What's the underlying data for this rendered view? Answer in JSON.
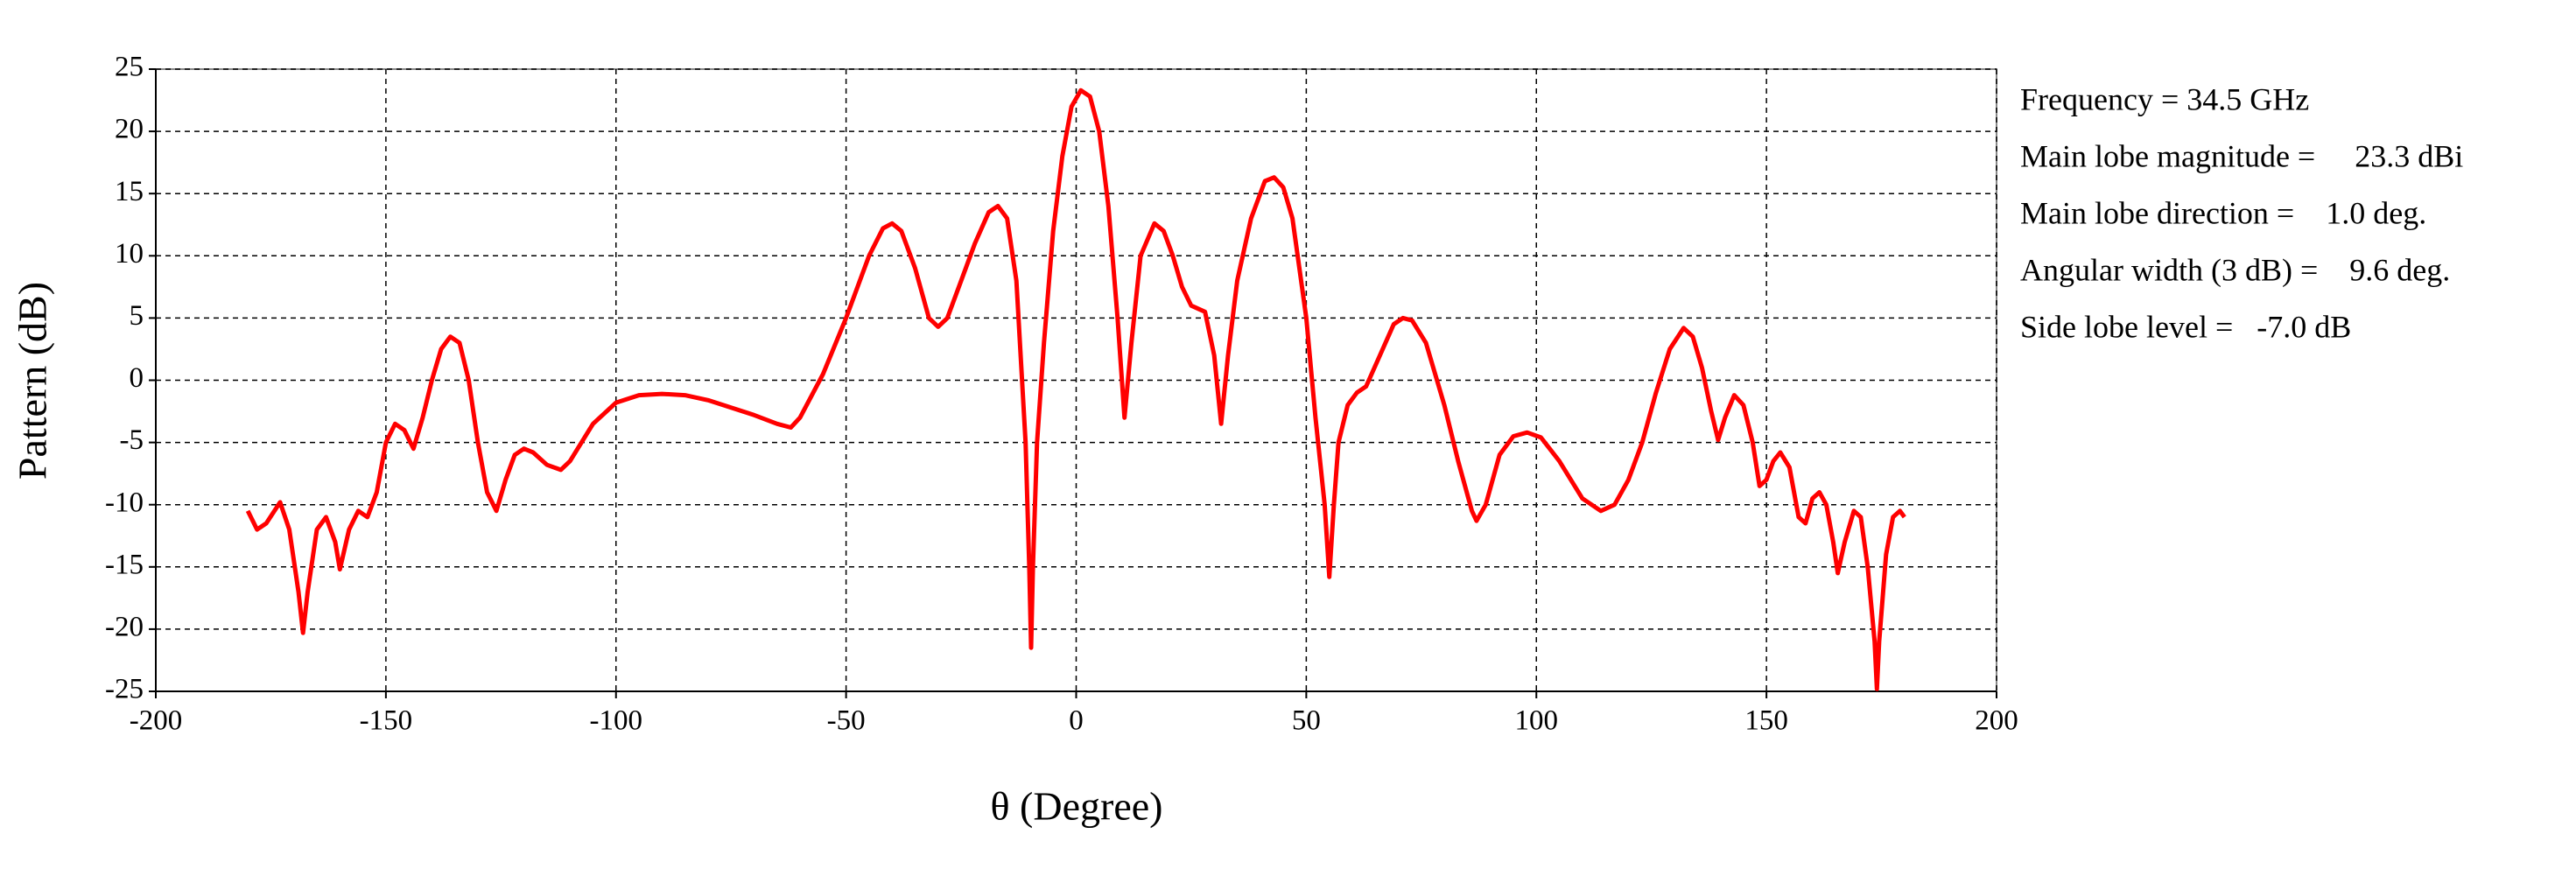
{
  "chart_data": {
    "type": "line",
    "xlabel": "θ (Degree)",
    "ylabel": "Pattern (dB)",
    "xlim": [
      -200,
      200
    ],
    "ylim": [
      -25,
      25
    ],
    "xticks": [
      -200,
      -150,
      -100,
      -50,
      0,
      50,
      100,
      150,
      200
    ],
    "yticks": [
      -25,
      -20,
      -15,
      -10,
      -5,
      0,
      5,
      10,
      15,
      20,
      25
    ],
    "grid": true,
    "annotations": [
      "Frequency = 34.5 GHz",
      "Main lobe magnitude =     23.3 dBi",
      "Main lobe direction =    1.0 deg.",
      "Angular width (3 dB) =    9.6 deg.",
      "Side lobe level =   -7.0 dB"
    ],
    "x": [
      -180,
      -178,
      -176,
      -173,
      -171,
      -169,
      -168,
      -167,
      -165,
      -163,
      -161,
      -160,
      -158,
      -156,
      -154,
      -152,
      -150,
      -148,
      -146,
      -144,
      -142,
      -140,
      -138,
      -136,
      -134,
      -132,
      -130,
      -128,
      -126,
      -124,
      -122,
      -120,
      -118,
      -115,
      -112,
      -110,
      -105,
      -100,
      -95,
      -90,
      -85,
      -80,
      -75,
      -70,
      -65,
      -62,
      -60,
      -55,
      -50,
      -45,
      -42,
      -40,
      -38,
      -35,
      -32,
      -30,
      -28,
      -25,
      -22,
      -19,
      -17,
      -15,
      -13,
      -11,
      -10.2,
      -9.8,
      -9.4,
      -8.5,
      -7,
      -5,
      -3,
      -1,
      1,
      3,
      5,
      7,
      9,
      10.5,
      12,
      14,
      17,
      19,
      21,
      23,
      25,
      28,
      30,
      31.5,
      33,
      35,
      38,
      41,
      43,
      45,
      47,
      50,
      52,
      54,
      55,
      56,
      57,
      59,
      61,
      63,
      66,
      69,
      71,
      73,
      76,
      80,
      83,
      86,
      87,
      89,
      92,
      95,
      98,
      101,
      105,
      110,
      114,
      117,
      120,
      123,
      126,
      129,
      132,
      134,
      136,
      138,
      139.5,
      141,
      143,
      145,
      147,
      148.5,
      150,
      151.5,
      153,
      155,
      157,
      158.5,
      160,
      161.5,
      163,
      164.5,
      165.5,
      167,
      169,
      170.5,
      172,
      173.5,
      174,
      174.5,
      176,
      177.5,
      179,
      180
    ],
    "series": [
      {
        "name": "Pattern",
        "color": "#ff0000",
        "values": [
          -10.5,
          -12,
          -11.5,
          -9.8,
          -12,
          -17,
          -20.3,
          -17,
          -12,
          -11,
          -13,
          -15.2,
          -12,
          -10.5,
          -11,
          -9,
          -5,
          -3.5,
          -4,
          -5.5,
          -3,
          0,
          2.5,
          3.5,
          3,
          0,
          -5,
          -9,
          -10.5,
          -8,
          -6,
          -5.5,
          -5.8,
          -6.8,
          -7.2,
          -6.5,
          -3.5,
          -1.8,
          -1.2,
          -1.1,
          -1.2,
          -1.6,
          -2.2,
          -2.8,
          -3.5,
          -3.8,
          -3,
          0.5,
          5,
          10,
          12.2,
          12.6,
          12,
          9,
          5,
          4.3,
          5,
          8,
          11,
          13.5,
          14,
          13,
          8,
          -5,
          -15,
          -21.5,
          -15,
          -5,
          3,
          12,
          18,
          22,
          23.3,
          22.8,
          20,
          14,
          5,
          -3,
          3,
          10,
          12.6,
          12,
          10,
          7.5,
          6,
          5.5,
          2,
          -3.5,
          2,
          8,
          13,
          16,
          16.3,
          15.5,
          13,
          5,
          -3,
          -10,
          -15.8,
          -10,
          -5,
          -2,
          -1,
          -0.5,
          2,
          4.5,
          5,
          4.8,
          3,
          -2,
          -6.5,
          -10.5,
          -11.3,
          -10,
          -6,
          -4.5,
          -4.2,
          -4.6,
          -6.5,
          -9.5,
          -10.5,
          -10,
          -8,
          -5,
          -1,
          2.5,
          4.2,
          3.5,
          1,
          -2.5,
          -4.8,
          -3,
          -1.2,
          -2,
          -5,
          -8.5,
          -8,
          -6.5,
          -5.8,
          -7,
          -11,
          -11.5,
          -9.5,
          -9,
          -10,
          -13,
          -15.5,
          -13,
          -10.5,
          -11,
          -15,
          -21,
          -24.8,
          -21,
          -14,
          -11,
          -10.5,
          -11
        ]
      }
    ]
  }
}
